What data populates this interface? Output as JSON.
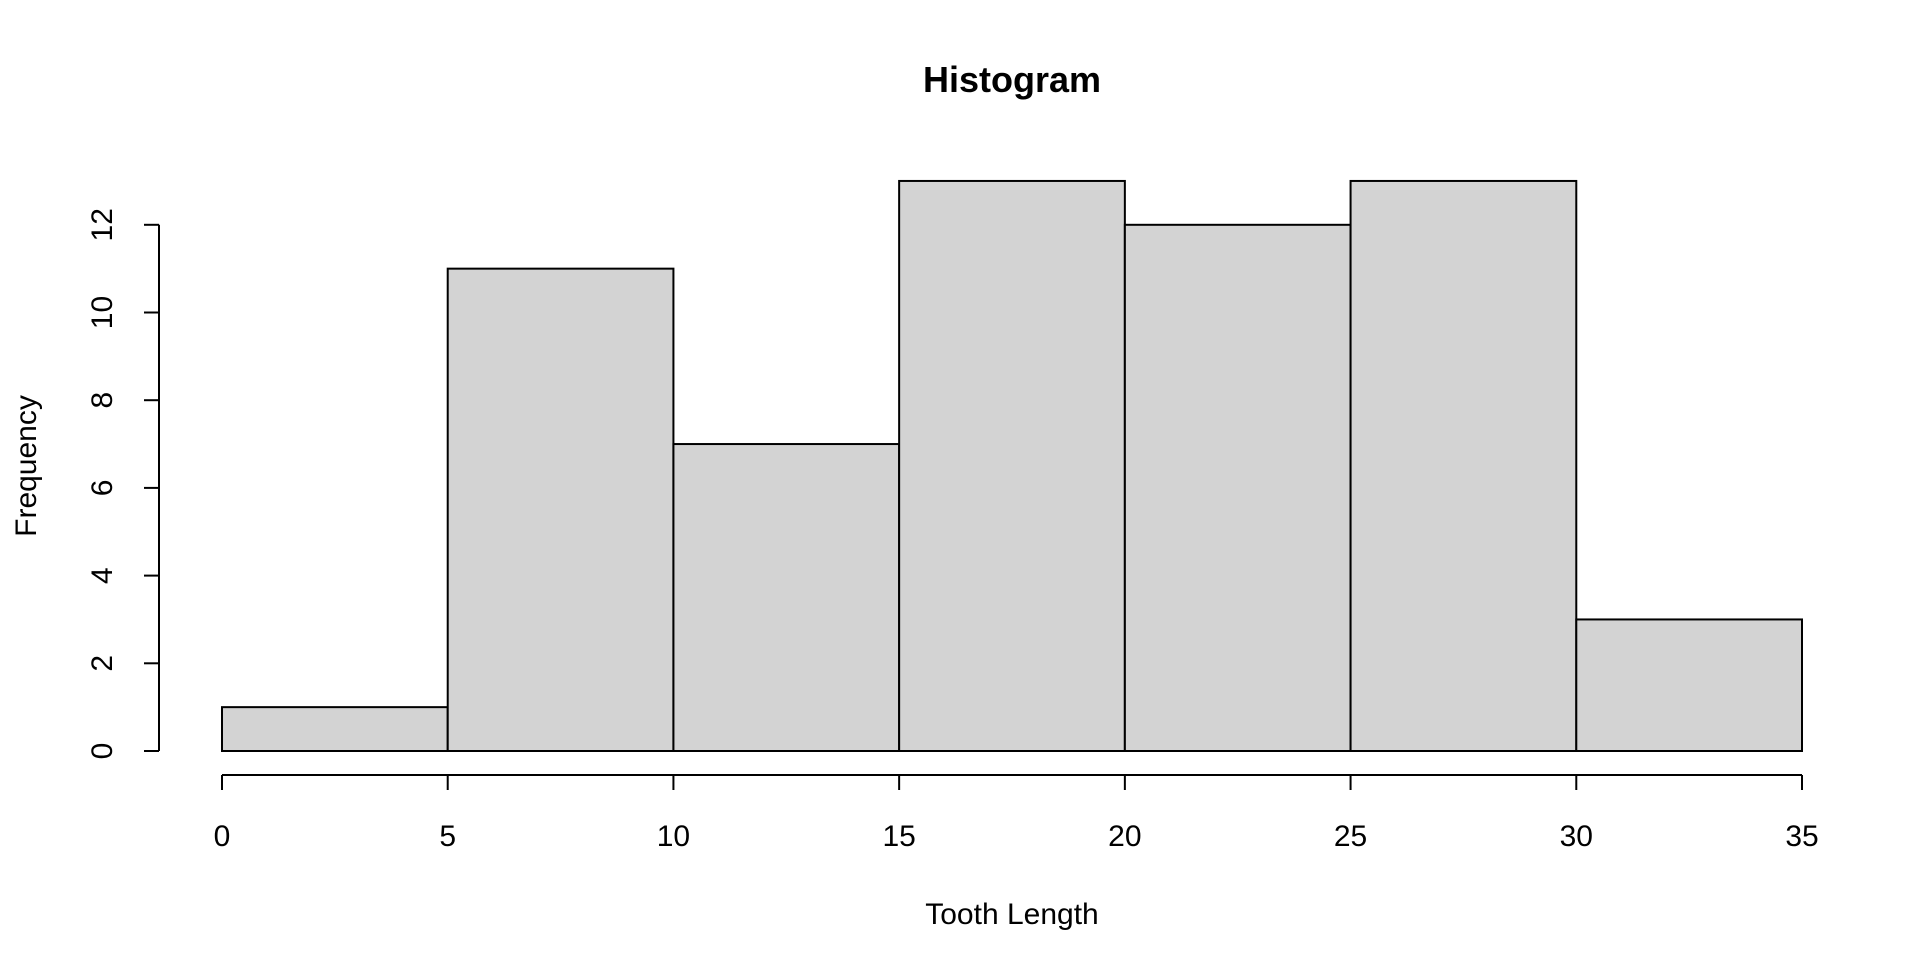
{
  "chart_data": {
    "type": "bar",
    "subtype": "histogram",
    "title": "Histogram",
    "xlabel": "Tooth Length",
    "ylabel": "Frequency",
    "bins": [
      {
        "from": 0,
        "to": 5,
        "count": 1
      },
      {
        "from": 5,
        "to": 10,
        "count": 11
      },
      {
        "from": 10,
        "to": 15,
        "count": 7
      },
      {
        "from": 15,
        "to": 20,
        "count": 13
      },
      {
        "from": 20,
        "to": 25,
        "count": 12
      },
      {
        "from": 25,
        "to": 30,
        "count": 13
      },
      {
        "from": 30,
        "to": 35,
        "count": 3
      }
    ],
    "xlim": [
      0,
      35
    ],
    "ylim": [
      0,
      13
    ],
    "xticks": [
      "0",
      "5",
      "10",
      "15",
      "20",
      "25",
      "30",
      "35"
    ],
    "yticks": [
      "0",
      "2",
      "4",
      "6",
      "8",
      "10",
      "12"
    ],
    "grid": false,
    "colors": {
      "bar_fill": "#d3d3d3",
      "bar_stroke": "#000000",
      "axis": "#000000"
    }
  }
}
